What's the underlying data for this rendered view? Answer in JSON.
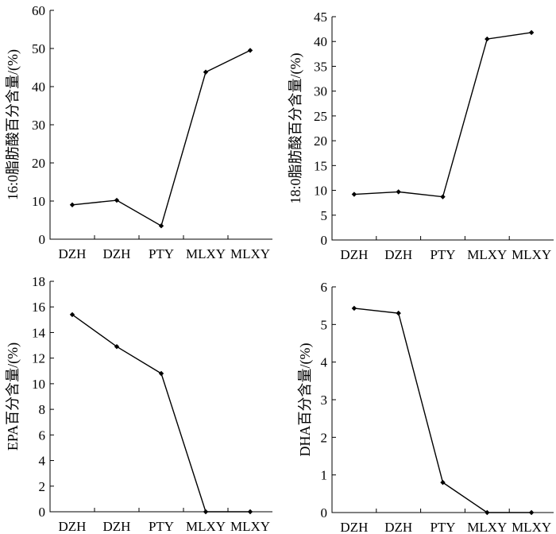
{
  "chart_data": [
    {
      "type": "line",
      "categories": [
        "DZH",
        "DZH",
        "PTY",
        "MLXY",
        "MLXY"
      ],
      "values": [
        9.0,
        10.2,
        3.5,
        43.8,
        49.5
      ],
      "ylabel": "16:0脂肪酸百分含量/(%)",
      "ylim": [
        0,
        60
      ],
      "yticks": [
        0,
        10,
        20,
        30,
        40,
        50,
        60
      ],
      "grid": false,
      "color": "#000000"
    },
    {
      "type": "line",
      "categories": [
        "DZH",
        "DZH",
        "PTY",
        "MLXY",
        "MLXY"
      ],
      "values": [
        9.2,
        9.7,
        8.7,
        40.5,
        41.8
      ],
      "ylabel": "18:0脂肪酸百分含量/(%)",
      "ylim": [
        0,
        45
      ],
      "yticks": [
        0,
        5,
        10,
        15,
        20,
        25,
        30,
        35,
        40,
        45
      ],
      "grid": false,
      "color": "#000000"
    },
    {
      "type": "line",
      "categories": [
        "DZH",
        "DZH",
        "PTY",
        "MLXY",
        "MLXY"
      ],
      "values": [
        15.4,
        12.9,
        10.8,
        0.0,
        0.0
      ],
      "ylabel": "EPA百分含量/(%)",
      "ylim": [
        0,
        18
      ],
      "yticks": [
        0,
        2,
        4,
        6,
        8,
        10,
        12,
        14,
        16,
        18
      ],
      "grid": false,
      "color": "#000000"
    },
    {
      "type": "line",
      "categories": [
        "DZH",
        "DZH",
        "PTY",
        "MLXY",
        "MLXY"
      ],
      "values": [
        5.43,
        5.3,
        0.8,
        0.0,
        0.0
      ],
      "ylabel": "DHA百分含量/(%)",
      "ylim": [
        0,
        6
      ],
      "yticks": [
        0,
        1,
        2,
        3,
        4,
        5,
        6
      ],
      "grid": false,
      "color": "#000000"
    }
  ]
}
